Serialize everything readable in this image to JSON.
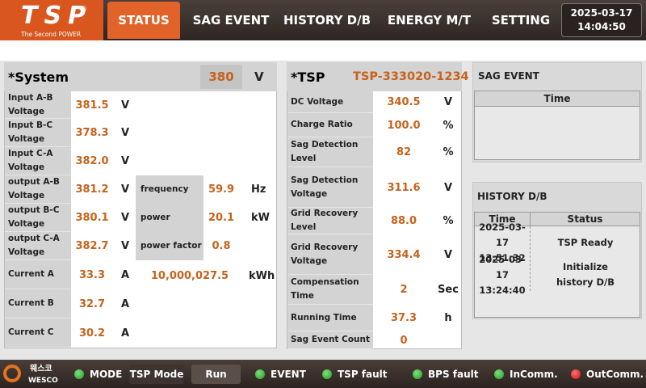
{
  "header": {
    "logo": {
      "title": "TSP",
      "mark": "®",
      "subtitle": "The Second POWER"
    },
    "tabs": [
      "STATUS",
      "SAG EVENT",
      "HISTORY D/B",
      "ENERGY M/T",
      "SETTING"
    ],
    "date": "2025-03-17",
    "time": "14:04:50"
  },
  "system": {
    "title": "*System",
    "value": "380",
    "unit": "V",
    "rows": [
      {
        "label": "Input A-B Voltage",
        "value": "381.5",
        "unit": "V"
      },
      {
        "label": "Input B-C Voltage",
        "value": "378.3",
        "unit": "V"
      },
      {
        "label": "Input C-A Voltage",
        "value": "382.0",
        "unit": "V"
      },
      {
        "label": "output A-B Voltage",
        "value": "381.2",
        "unit": "V"
      },
      {
        "label": "output B-C Voltage",
        "value": "380.1",
        "unit": "V"
      },
      {
        "label": "output C-A Voltage",
        "value": "382.7",
        "unit": "V"
      },
      {
        "label": "Current A",
        "value": "33.3",
        "unit": "A"
      },
      {
        "label": "Current B",
        "value": "32.7",
        "unit": "A"
      },
      {
        "label": "Current C",
        "value": "30.2",
        "unit": "A"
      }
    ],
    "extra": [
      {
        "label": "frequency",
        "value": "59.9",
        "unit": "Hz"
      },
      {
        "label": "power",
        "value": "20.1",
        "unit": "kW"
      },
      {
        "label": "power factor",
        "value": "0.8"
      }
    ],
    "energy": {
      "value": "10,000,027.5",
      "unit": "kWh"
    }
  },
  "tsp": {
    "title": "*TSP",
    "id": "TSP-333020-1234",
    "rows": [
      {
        "label": "DC Voltage",
        "value": "340.5",
        "unit": "V"
      },
      {
        "label": "Charge Ratio",
        "value": "100.0",
        "unit": "%"
      },
      {
        "label": "Sag Detection Level",
        "value": "82",
        "unit": "%"
      },
      {
        "label": "Sag Detection Voltage",
        "value": "311.6",
        "unit": "V"
      },
      {
        "label": "Grid Recovery Level",
        "value": "88.0",
        "unit": "%"
      },
      {
        "label": "Grid Recovery Voltage",
        "value": "334.4",
        "unit": "V"
      },
      {
        "label": "Compensation Time",
        "value": "2",
        "unit": "Sec"
      },
      {
        "label": "Running Time",
        "value": "37.3",
        "unit": "h"
      },
      {
        "label": "Sag Event Count",
        "value": "0"
      }
    ]
  },
  "sag_event": {
    "title": "SAG EVENT",
    "columns": [
      "Time"
    ]
  },
  "history": {
    "title": "HISTORY D/B",
    "columns": [
      "Time",
      "Status"
    ],
    "rows": [
      [
        "2025-03-17 13:51:32",
        "TSP Ready"
      ],
      [
        "2025-03-17 13:24:40",
        "Initialize history D/B"
      ]
    ]
  },
  "footer": {
    "brand": {
      "korean": "웨스코",
      "name": "WESCO"
    },
    "mode": {
      "label": "MODE",
      "mode": "TSP Mode",
      "run": "Run"
    },
    "indicators": [
      "EVENT",
      "TSP fault",
      "BPS fault",
      "InComm.",
      "OutComm."
    ]
  }
}
